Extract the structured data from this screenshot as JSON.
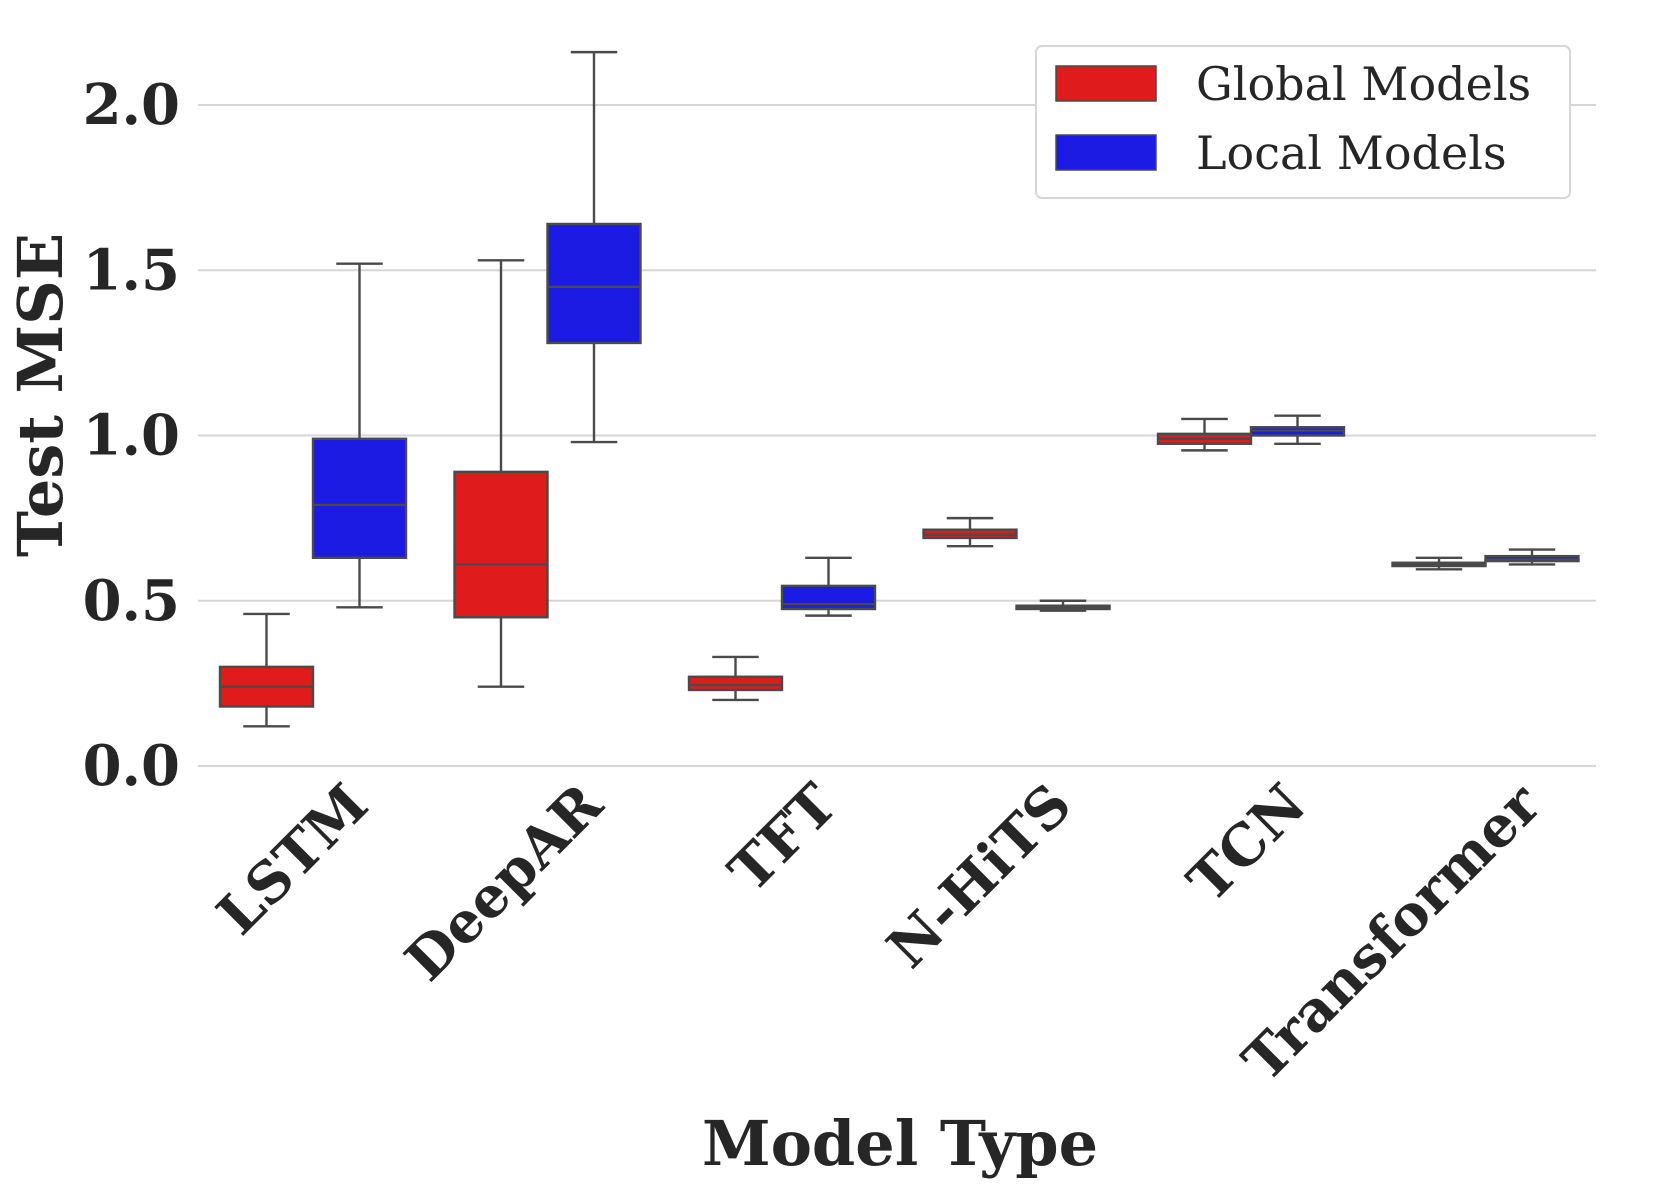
{
  "chart_data": {
    "type": "box",
    "title": "",
    "xlabel": "Model Type",
    "ylabel": "Test MSE",
    "ylim": [
      -0.02,
      2.3
    ],
    "yticks": [
      0.0,
      0.5,
      1.0,
      1.5,
      2.0
    ],
    "ytick_labels": [
      "0.0",
      "0.5",
      "1.0",
      "1.5",
      "2.0"
    ],
    "grid": true,
    "legend_position": "top-right",
    "categories": [
      "LSTM",
      "DeepAR",
      "TFT",
      "N-HiTS",
      "TCN",
      "Transformer"
    ],
    "series": [
      {
        "name": "Global Models",
        "color": "#e01b1b",
        "boxes": [
          {
            "whislo": 0.12,
            "q1": 0.18,
            "med": 0.24,
            "q3": 0.3,
            "whishi": 0.46
          },
          {
            "whislo": 0.24,
            "q1": 0.45,
            "med": 0.61,
            "q3": 0.89,
            "whishi": 1.53
          },
          {
            "whislo": 0.2,
            "q1": 0.23,
            "med": 0.245,
            "q3": 0.27,
            "whishi": 0.33
          },
          {
            "whislo": 0.665,
            "q1": 0.69,
            "med": 0.7,
            "q3": 0.715,
            "whishi": 0.75
          },
          {
            "whislo": 0.955,
            "q1": 0.975,
            "med": 0.99,
            "q3": 1.005,
            "whishi": 1.05
          },
          {
            "whislo": 0.595,
            "q1": 0.605,
            "med": 0.61,
            "q3": 0.615,
            "whishi": 0.63
          }
        ]
      },
      {
        "name": "Local Models",
        "color": "#1b1be3",
        "boxes": [
          {
            "whislo": 0.48,
            "q1": 0.63,
            "med": 0.79,
            "q3": 0.99,
            "whishi": 1.52
          },
          {
            "whislo": 0.98,
            "q1": 1.28,
            "med": 1.45,
            "q3": 1.64,
            "whishi": 2.16
          },
          {
            "whislo": 0.455,
            "q1": 0.475,
            "med": 0.49,
            "q3": 0.545,
            "whishi": 0.63
          },
          {
            "whislo": 0.47,
            "q1": 0.475,
            "med": 0.48,
            "q3": 0.485,
            "whishi": 0.5
          },
          {
            "whislo": 0.975,
            "q1": 1.0,
            "med": 1.015,
            "q3": 1.025,
            "whishi": 1.06
          },
          {
            "whislo": 0.61,
            "q1": 0.62,
            "med": 0.625,
            "q3": 0.635,
            "whishi": 0.655
          }
        ]
      }
    ]
  }
}
